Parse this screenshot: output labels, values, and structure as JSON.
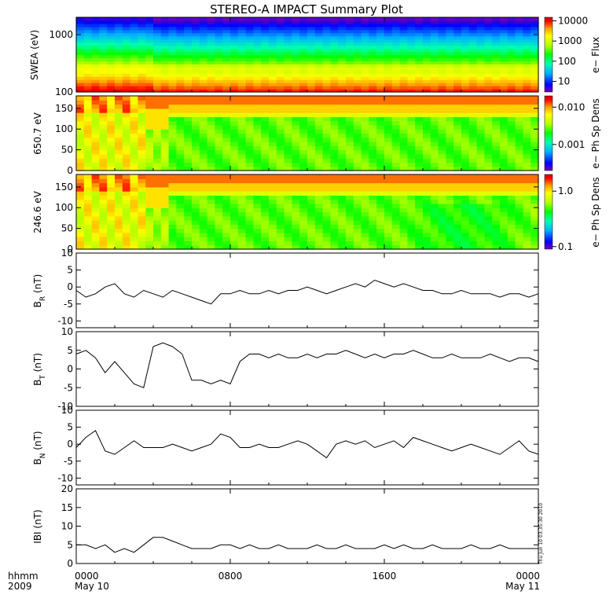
{
  "title": "STEREO-A IMPACT Summary Plot",
  "footer": {
    "hhmm_label": "hhmm",
    "year_label": "2009",
    "stamp": "Thu Jun 10 03:35:30 2010"
  },
  "time_axis": {
    "ticks": [
      {
        "time": "0000",
        "date": "May 10",
        "hours": 0
      },
      {
        "time": "0800",
        "date": "",
        "hours": 8
      },
      {
        "time": "1600",
        "date": "",
        "hours": 16
      },
      {
        "time": "0000",
        "date": "May 11",
        "hours": 24
      }
    ],
    "range_hours": [
      0,
      24
    ]
  },
  "colors": {
    "spectral": [
      "#7800b4",
      "#0000ff",
      "#00b0ff",
      "#00ffb0",
      "#00ff00",
      "#b0ff00",
      "#ffff00",
      "#ffa000",
      "#ff0000",
      "#c80000"
    ],
    "line": "#000000"
  },
  "chart_data": [
    {
      "type": "heatmap",
      "name": "swea",
      "ylabel": "SWEA (eV)",
      "yscale": "log",
      "ylim": [
        100,
        2000
      ],
      "yticks": [
        "1000",
        "100"
      ],
      "colorbar": {
        "label": "e− Flux",
        "scale": "log",
        "range": [
          3,
          15000
        ],
        "ticks": [
          "10000",
          "1000",
          "100",
          "10"
        ]
      }
    },
    {
      "type": "heatmap",
      "name": "pad650",
      "ylabel": "650.7 eV",
      "ylim": [
        0,
        180
      ],
      "yticks": [
        "150",
        "100",
        "50",
        "0"
      ],
      "colorbar": {
        "label": "e− Ph Sp Dens",
        "scale": "log",
        "range": [
          0.0002,
          0.02
        ],
        "ticks": [
          "0.010",
          "0.001"
        ]
      }
    },
    {
      "type": "heatmap",
      "name": "pad246",
      "ylabel": "246.6 eV",
      "ylim": [
        0,
        180
      ],
      "yticks": [
        "150",
        "100",
        "50",
        "0"
      ],
      "colorbar": {
        "label": "e− Ph Sp Dens",
        "scale": "log",
        "range": [
          0.09,
          2.0
        ],
        "ticks": [
          "1.0",
          "0.1"
        ]
      }
    },
    {
      "type": "line",
      "name": "br",
      "ylabel_base": "B",
      "ylabel_sub": "R",
      "ylabel_unit": " (nT)",
      "ylim": [
        -12,
        10
      ],
      "yticks": [
        "10",
        "5",
        "0",
        "-5",
        "-10"
      ],
      "x_hours": [
        0,
        0.5,
        1,
        1.5,
        2,
        2.5,
        3,
        3.5,
        4,
        4.5,
        5,
        5.5,
        6,
        6.5,
        7,
        7.5,
        8,
        8.5,
        9,
        9.5,
        10,
        10.5,
        11,
        11.5,
        12,
        12.5,
        13,
        13.5,
        14,
        14.5,
        15,
        15.5,
        16,
        16.5,
        17,
        17.5,
        18,
        18.5,
        19,
        19.5,
        20,
        20.5,
        21,
        21.5,
        22,
        22.5,
        23,
        23.5,
        24
      ],
      "y": [
        -1,
        -3,
        -2,
        0,
        1,
        -2,
        -3,
        -1,
        -2,
        -3,
        -1,
        -2,
        -3,
        -4,
        -5,
        -2,
        -2,
        -1,
        -2,
        -2,
        -1,
        -2,
        -1,
        -1,
        0,
        -1,
        -2,
        -1,
        0,
        1,
        0,
        2,
        1,
        0,
        1,
        0,
        -1,
        -1,
        -2,
        -2,
        -1,
        -2,
        -2,
        -2,
        -3,
        -2,
        -2,
        -3,
        -2
      ]
    },
    {
      "type": "line",
      "name": "bt",
      "ylabel_base": "B",
      "ylabel_sub": "T",
      "ylabel_unit": " (nT)",
      "ylim": [
        -10,
        10
      ],
      "yticks": [
        "10",
        "5",
        "0",
        "-5",
        "-10"
      ],
      "x_hours": [
        0,
        0.5,
        1,
        1.5,
        2,
        2.5,
        3,
        3.5,
        4,
        4.5,
        5,
        5.5,
        6,
        6.5,
        7,
        7.5,
        8,
        8.5,
        9,
        9.5,
        10,
        10.5,
        11,
        11.5,
        12,
        12.5,
        13,
        13.5,
        14,
        14.5,
        15,
        15.5,
        16,
        16.5,
        17,
        17.5,
        18,
        18.5,
        19,
        19.5,
        20,
        20.5,
        21,
        21.5,
        22,
        22.5,
        23,
        23.5,
        24
      ],
      "y": [
        4,
        5,
        3,
        -1,
        2,
        -1,
        -4,
        -5,
        6,
        7,
        6,
        4,
        -3,
        -3,
        -4,
        -3,
        -4,
        2,
        4,
        4,
        3,
        4,
        3,
        3,
        4,
        3,
        4,
        4,
        5,
        4,
        3,
        4,
        3,
        4,
        4,
        5,
        4,
        3,
        3,
        4,
        3,
        3,
        3,
        4,
        3,
        2,
        3,
        3,
        2
      ]
    },
    {
      "type": "line",
      "name": "bn",
      "ylabel_base": "B",
      "ylabel_sub": "N",
      "ylabel_unit": " (nT)",
      "ylim": [
        -12,
        10
      ],
      "yticks": [
        "10",
        "5",
        "0",
        "-5",
        "-10"
      ],
      "x_hours": [
        0,
        0.5,
        1,
        1.5,
        2,
        2.5,
        3,
        3.5,
        4,
        4.5,
        5,
        5.5,
        6,
        6.5,
        7,
        7.5,
        8,
        8.5,
        9,
        9.5,
        10,
        10.5,
        11,
        11.5,
        12,
        12.5,
        13,
        13.5,
        14,
        14.5,
        15,
        15.5,
        16,
        16.5,
        17,
        17.5,
        18,
        18.5,
        19,
        19.5,
        20,
        20.5,
        21,
        21.5,
        22,
        22.5,
        23,
        23.5,
        24
      ],
      "y": [
        -1,
        2,
        4,
        -2,
        -3,
        -1,
        1,
        -1,
        -1,
        -1,
        0,
        -1,
        -2,
        -1,
        0,
        3,
        2,
        -1,
        -1,
        0,
        -1,
        -1,
        0,
        1,
        0,
        -2,
        -4,
        0,
        1,
        0,
        1,
        -1,
        0,
        1,
        -1,
        2,
        1,
        0,
        -1,
        -2,
        -1,
        0,
        -1,
        -2,
        -3,
        -1,
        1,
        -2,
        -3
      ]
    },
    {
      "type": "line",
      "name": "bmag",
      "ylabel_base": "IBI",
      "ylabel_sub": "",
      "ylabel_unit": " (nT)",
      "ylim": [
        0,
        20
      ],
      "yticks": [
        "20",
        "15",
        "10",
        "5",
        "0"
      ],
      "x_hours": [
        0,
        0.5,
        1,
        1.5,
        2,
        2.5,
        3,
        3.5,
        4,
        4.5,
        5,
        5.5,
        6,
        6.5,
        7,
        7.5,
        8,
        8.5,
        9,
        9.5,
        10,
        10.5,
        11,
        11.5,
        12,
        12.5,
        13,
        13.5,
        14,
        14.5,
        15,
        15.5,
        16,
        16.5,
        17,
        17.5,
        18,
        18.5,
        19,
        19.5,
        20,
        20.5,
        21,
        21.5,
        22,
        22.5,
        23,
        23.5,
        24
      ],
      "y": [
        5,
        5,
        4,
        5,
        3,
        4,
        3,
        5,
        7,
        7,
        6,
        5,
        4,
        4,
        4,
        5,
        5,
        4,
        5,
        4,
        4,
        5,
        4,
        4,
        4,
        5,
        4,
        4,
        5,
        4,
        4,
        4,
        5,
        4,
        5,
        4,
        4,
        5,
        4,
        4,
        4,
        5,
        4,
        4,
        5,
        4,
        4,
        4,
        4
      ]
    }
  ]
}
